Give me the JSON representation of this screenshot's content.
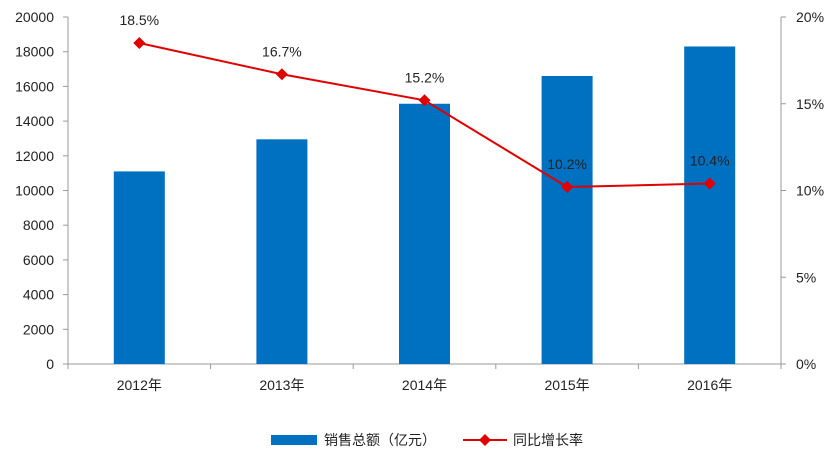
{
  "chart_data": {
    "type": "bar",
    "categories": [
      "2012年",
      "2013年",
      "2014年",
      "2015年",
      "2016年"
    ],
    "series": [
      {
        "name": "销售总额（亿元）",
        "type": "bar",
        "axis": "left",
        "color": "#0070C0",
        "values": [
          11100,
          12950,
          15000,
          16600,
          18300
        ]
      },
      {
        "name": "同比增长率",
        "type": "line",
        "axis": "right",
        "color": "#E00000",
        "marker": "diamond",
        "values": [
          18.5,
          16.7,
          15.2,
          10.2,
          10.4
        ],
        "labels": [
          "18.5%",
          "16.7%",
          "15.2%",
          "10.2%",
          "10.4%"
        ]
      }
    ],
    "y_left": {
      "ylim": [
        0,
        20000
      ],
      "ticks": [
        "0",
        "2000",
        "4000",
        "6000",
        "8000",
        "10000",
        "12000",
        "14000",
        "16000",
        "18000",
        "20000"
      ]
    },
    "y_right": {
      "ylim": [
        0,
        20
      ],
      "ticks": [
        "0%",
        "5%",
        "10%",
        "15%",
        "20%"
      ]
    },
    "grid": false,
    "legend": "bottom"
  }
}
